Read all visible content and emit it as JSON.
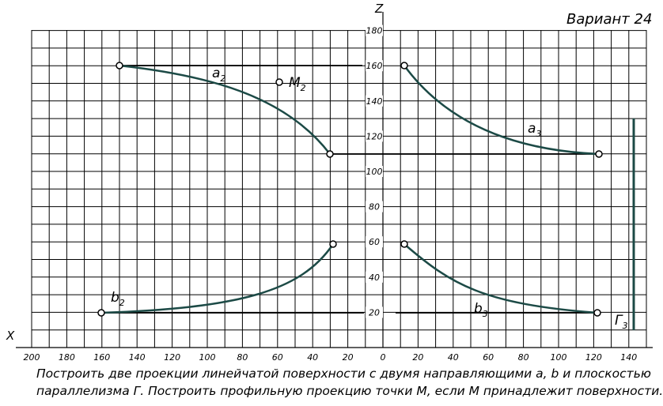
{
  "header": {
    "variant": "Вариант 24"
  },
  "axes": {
    "z_label": "Z",
    "x_label": "X",
    "z_ticks": [
      "180",
      "160",
      "140",
      "120",
      "100",
      "80",
      "60",
      "40",
      "20"
    ],
    "x_ticks": [
      "200",
      "180",
      "160",
      "140",
      "120",
      "100",
      "80",
      "60",
      "40",
      "20",
      "0",
      "20",
      "40",
      "60",
      "80",
      "100",
      "120",
      "140"
    ]
  },
  "labels": {
    "a2": {
      "letter": "a",
      "sub": "2"
    },
    "M2": {
      "letter": "M",
      "sub": "2"
    },
    "a3": {
      "letter": "a",
      "sub": "3"
    },
    "b2": {
      "letter": "b",
      "sub": "2"
    },
    "b3": {
      "letter": "b",
      "sub": "3"
    },
    "G3": {
      "letter": "Г",
      "sub": "3"
    }
  },
  "caption": [
    "Построить две проекции линейчатой поверхности с двумя направляющими a, b и плоскостью",
    "параллелизма Г. Построить профильную проекцию точки M, если M принадлежит поверхности."
  ]
}
